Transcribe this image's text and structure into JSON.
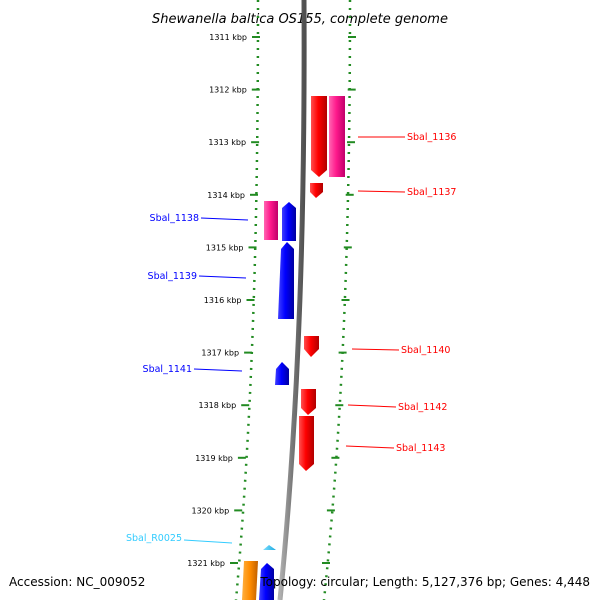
{
  "title": "Shewanella baltica OS155, complete genome",
  "footer": {
    "accession": "Accession: NC_009052",
    "topology": "Topology: circular; Length: 5,127,376 bp; Genes: 4,448"
  },
  "ruler": {
    "unit": "kbp",
    "ticks": [
      1311,
      1312,
      1313,
      1314,
      1315,
      1316,
      1317,
      1318,
      1319,
      1320,
      1321
    ]
  },
  "colors": {
    "forward_gene": "#ff0000",
    "reverse_gene": "#0000ff",
    "pseudo_gene": "#ff1a8c",
    "rna_gene": "#33ccff",
    "other_gene": "#ff8c00",
    "axis": "#808080",
    "ruler": "#228b22"
  },
  "labels": [
    {
      "text": "Sbal_1136",
      "color": "#ff0000"
    },
    {
      "text": "Sbal_1137",
      "color": "#ff0000"
    },
    {
      "text": "Sbal_1138",
      "color": "#0000ff"
    },
    {
      "text": "Sbal_1139",
      "color": "#0000ff"
    },
    {
      "text": "Sbal_1140",
      "color": "#ff0000"
    },
    {
      "text": "Sbal_1141",
      "color": "#0000ff"
    },
    {
      "text": "Sbal_1142",
      "color": "#ff0000"
    },
    {
      "text": "Sbal_1143",
      "color": "#ff0000"
    },
    {
      "text": "Sbal_R0025",
      "color": "#33ccff"
    }
  ]
}
